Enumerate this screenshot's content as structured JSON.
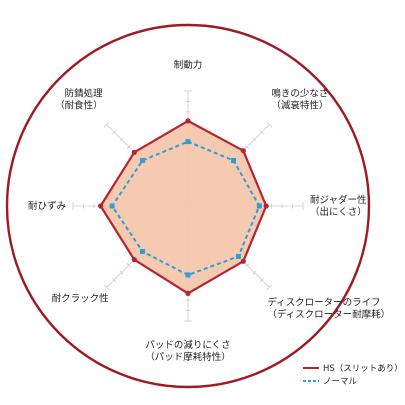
{
  "chart_data": {
    "type": "radar",
    "axes": [
      {
        "label_lines": [
          "制動力"
        ]
      },
      {
        "label_lines": [
          "鳴きの少なさ",
          "（減衰特性）"
        ]
      },
      {
        "label_lines": [
          "耐ジャダー性",
          "（出にくさ）"
        ]
      },
      {
        "label_lines": [
          "ディスクローターのライフ",
          "（ディスクローター耐摩耗）"
        ]
      },
      {
        "label_lines": [
          "パッドの減りにくさ",
          "（パッド摩耗特性）"
        ]
      },
      {
        "label_lines": [
          "耐クラック性"
        ]
      },
      {
        "label_lines": [
          "耐ひずみ"
        ]
      },
      {
        "label_lines": [
          "防錆処理",
          "（耐食性）"
        ]
      }
    ],
    "rmax": 5,
    "ticks": 11,
    "series": [
      {
        "name": "HS（スリットあり）",
        "style": "solid",
        "color": "#b5242f",
        "fill": "#f6c7ad",
        "values": [
          3.7,
          3.4,
          3.4,
          3.4,
          3.8,
          3.3,
          3.8,
          3.3
        ]
      },
      {
        "name": "ノーマル",
        "style": "dashed",
        "color": "#2a9fd8",
        "values": [
          2.8,
          2.8,
          3.1,
          3.1,
          3.0,
          2.8,
          3.3,
          2.8
        ]
      }
    ],
    "legend_position": "bottom-right",
    "colors": {
      "outer_ring": "#9e1b22",
      "grid": "#cccccc",
      "background": "#ffffff"
    }
  }
}
